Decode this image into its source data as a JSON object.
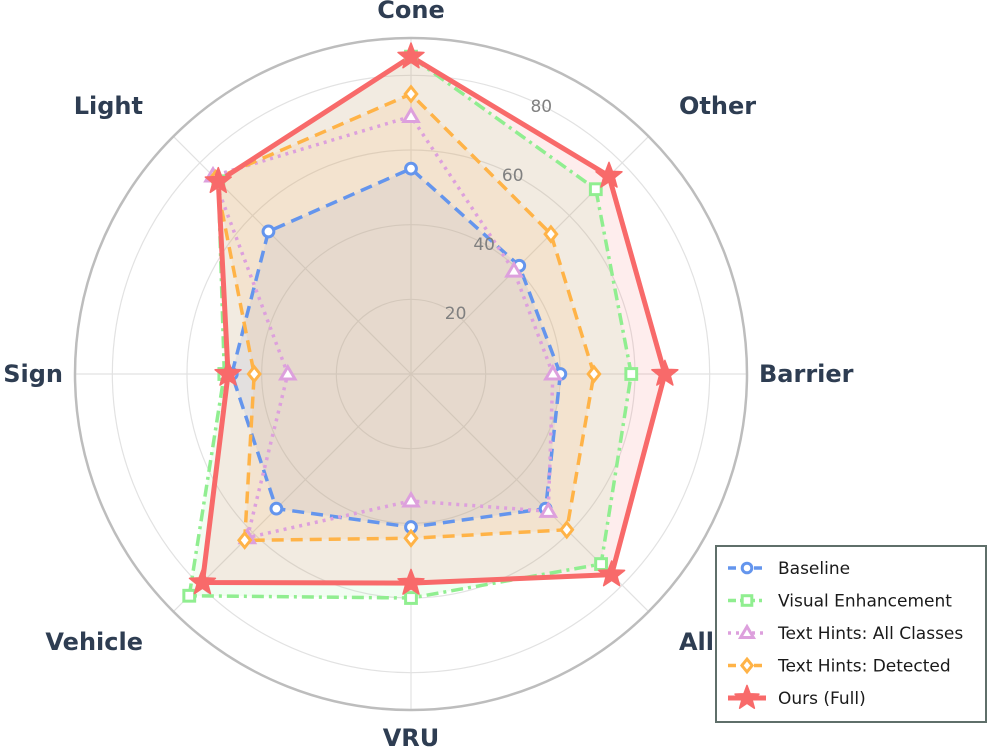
{
  "chart_data": {
    "type": "radar",
    "title": "",
    "axes": [
      "Barrier",
      "Other",
      "Cone",
      "Light",
      "Sign",
      "Vehicle",
      "VRU",
      "All"
    ],
    "rlim": [
      0,
      90
    ],
    "r_ticks": [
      20,
      40,
      60,
      80
    ],
    "r_tick_labels": [
      "20",
      "40",
      "60",
      "80"
    ],
    "grid": true,
    "legend_position": "bottom-right",
    "series": [
      {
        "name": "Baseline",
        "color": "#6495ED",
        "line": "dashed",
        "marker": "circle",
        "values": [
          40,
          41,
          55,
          54,
          48,
          51,
          41,
          51
        ],
        "fill": true
      },
      {
        "name": "Visual Enhancement",
        "color": "#90EE90",
        "line": "dashdot",
        "marker": "square",
        "values": [
          59,
          70,
          85,
          73,
          50,
          84,
          60,
          72
        ],
        "fill": true
      },
      {
        "name": "Text Hints: All Classes",
        "color": "#DDA0DD",
        "line": "dotted",
        "marker": "triangle",
        "values": [
          38,
          39,
          69,
          75,
          33,
          62,
          34,
          52
        ],
        "fill": false
      },
      {
        "name": "Text Hints: Detected",
        "color": "#FFB347",
        "line": "dashed",
        "marker": "diamond",
        "values": [
          49,
          53,
          75,
          74,
          42,
          63,
          44,
          59
        ],
        "fill": true
      },
      {
        "name": "Ours (Full)",
        "color": "#F86A6A",
        "line": "solid",
        "marker": "star",
        "values": [
          68,
          75,
          85,
          73,
          49,
          79,
          56,
          76
        ],
        "fill": true
      }
    ]
  }
}
